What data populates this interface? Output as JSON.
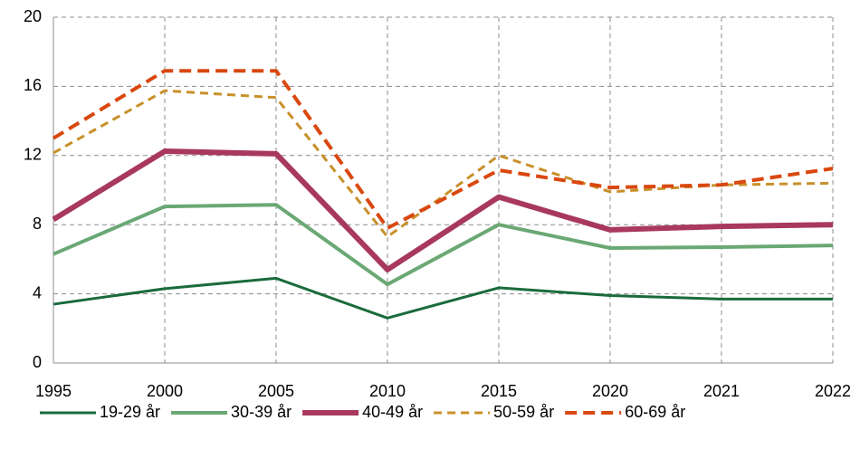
{
  "chart_data": {
    "type": "line",
    "categories": [
      "1995",
      "2000",
      "2005",
      "2010",
      "2015",
      "2020",
      "2021",
      "2022"
    ],
    "ylim": [
      0,
      20
    ],
    "yticks": [
      0,
      4,
      8,
      12,
      16,
      20
    ],
    "grid": true,
    "legend": "bottom",
    "series": [
      {
        "name": "19-29 år",
        "color": "#1a6b3c",
        "dashed": false,
        "values": [
          3.4,
          4.3,
          4.9,
          2.6,
          4.35,
          3.9,
          3.7,
          3.7
        ]
      },
      {
        "name": "30-39 år",
        "color": "#6aa874",
        "dashed": false,
        "values": [
          6.3,
          9.05,
          9.15,
          4.55,
          8.0,
          6.65,
          6.7,
          6.8
        ]
      },
      {
        "name": "40-49 år",
        "color": "#a8385f",
        "dashed": false,
        "values": [
          8.3,
          12.25,
          12.1,
          5.4,
          9.6,
          7.7,
          7.9,
          8.0
        ]
      },
      {
        "name": "50-59 år",
        "color": "#c8902a",
        "dashed": true,
        "values": [
          12.15,
          15.75,
          15.35,
          7.3,
          12.0,
          9.9,
          10.3,
          10.4
        ]
      },
      {
        "name": "60-69 år",
        "color": "#d9480f",
        "dashed": true,
        "values": [
          13.0,
          16.9,
          16.9,
          7.8,
          11.15,
          10.15,
          10.3,
          11.25
        ]
      }
    ]
  }
}
